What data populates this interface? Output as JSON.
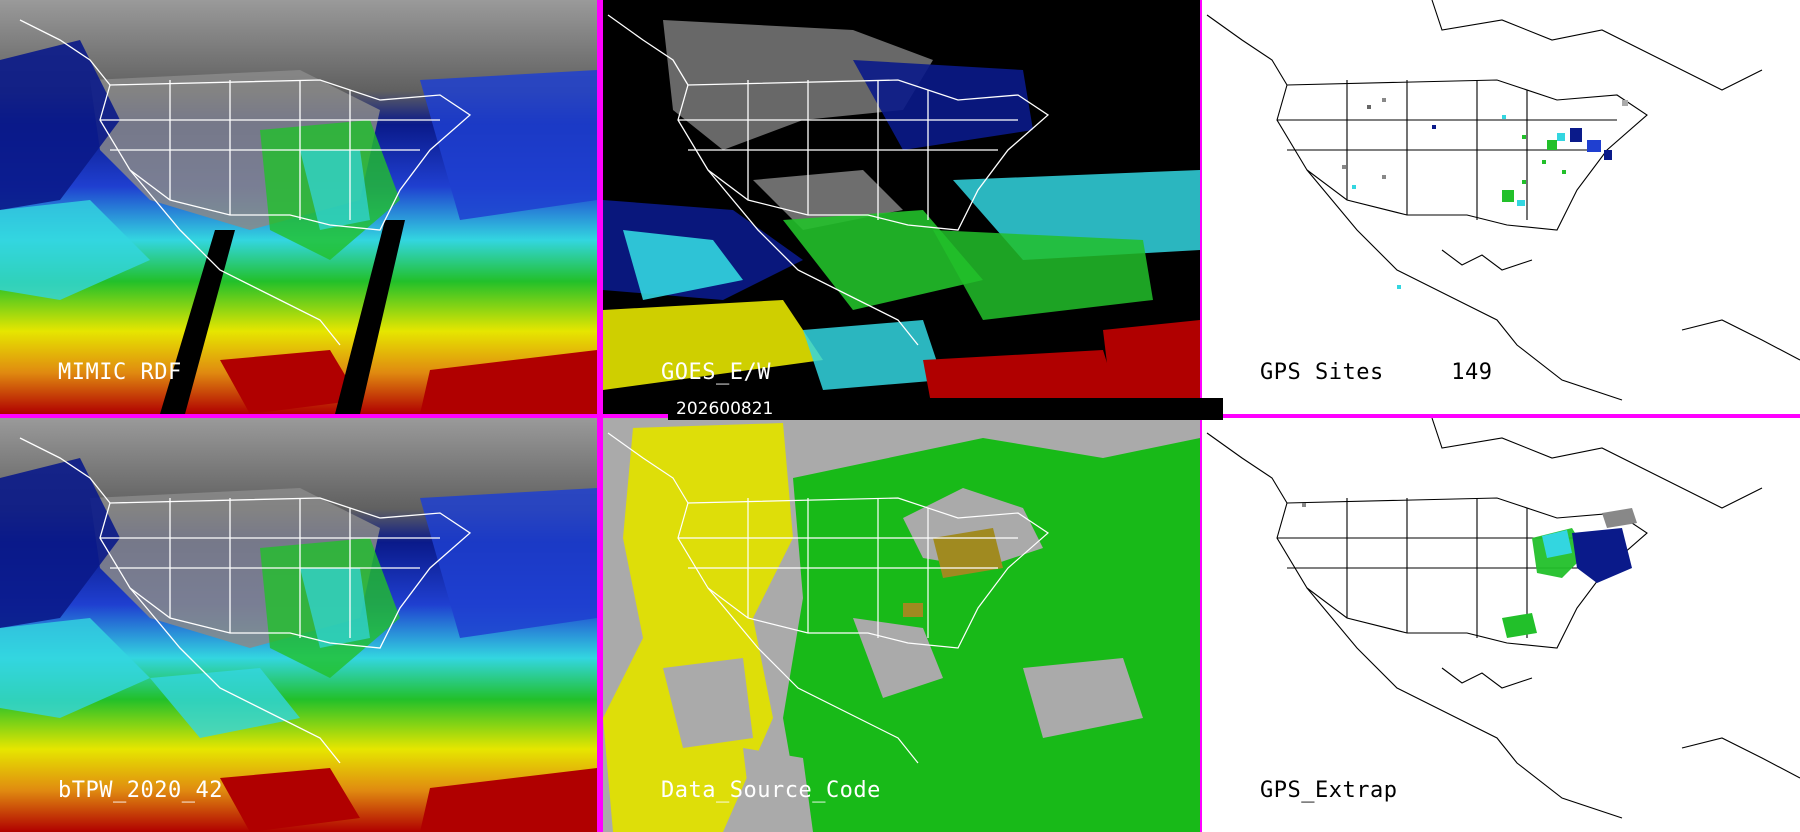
{
  "panels": [
    {
      "id": "mimic_rdf",
      "label": "MIMIC RDF"
    },
    {
      "id": "goes_ew",
      "label": "GOES_E/W"
    },
    {
      "id": "gps_sites",
      "label": "GPS Sites",
      "count": "149"
    },
    {
      "id": "btpw",
      "label": "bTPW_2020_42"
    },
    {
      "id": "data_source_code",
      "label": "Data_Source_Code"
    },
    {
      "id": "gps_extrap",
      "label": "GPS_Extrap"
    }
  ],
  "date_bar": {
    "text": "202600821"
  },
  "colors": {
    "frame": "#ff00ff",
    "deep_blue": "#0a1a8a",
    "blue": "#1f3fd0",
    "cyan": "#33d6e0",
    "green": "#22c02a",
    "yellow": "#e6e600",
    "orange": "#e08a10",
    "red": "#b00000",
    "gray": "#aaaaaa",
    "source_yellow": "#e0e000",
    "source_green": "#10bb10",
    "source_olive": "#a08a20"
  }
}
